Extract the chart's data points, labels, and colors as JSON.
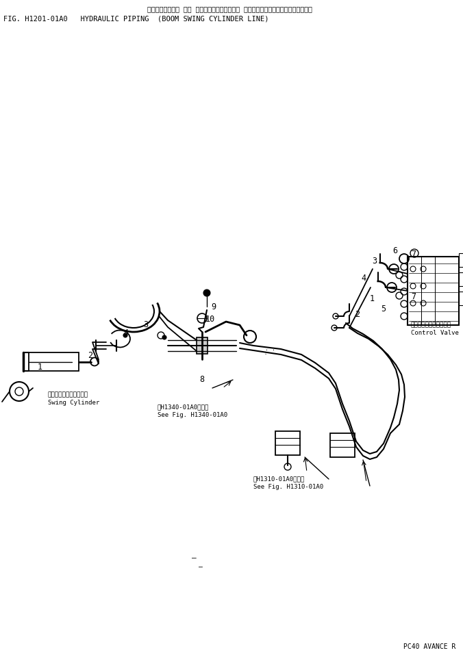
{
  "title_jp": "ハイドロリック バ イビング　（ブーム スイング　シリンン゙ラ　ライン）",
  "title_en": "FIG. H1201-01A0   HYDRAULIC PIPING  (BOOM SWING CYLINDER LINE)",
  "footer": "PC40 AVANCE R",
  "bg_color": "#ffffff",
  "fig_width": 6.76,
  "fig_height": 9.6,
  "dpi": 100,
  "swing_cylinder_label_jp": "スイングシリンン゙ラ",
  "swing_cylinder_label_en": "Swing Cylinder",
  "control_valve_label_jp": "コントロールバルブ",
  "control_valve_label_en": "Control Valve",
  "see_fig_1340_jp": "第H1340-01A0図参照",
  "see_fig_1340_en": "See Fig. H1340-01A0",
  "see_fig_1310_jp": "第H1310-01A0図参照",
  "see_fig_1310_en": "See Fig. H1310-01A0",
  "font_color": "#000000",
  "font_family": "monospace",
  "title_fontsize": 7.5,
  "label_fontsize": 6.5,
  "partnum_fontsize": 8.5
}
